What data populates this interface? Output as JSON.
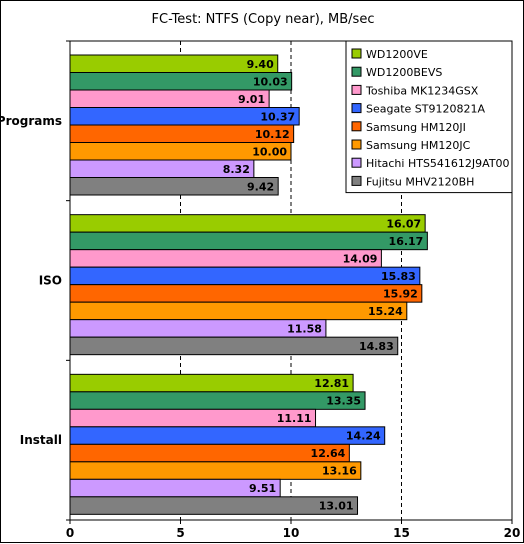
{
  "chart_data": {
    "type": "bar",
    "orientation": "horizontal",
    "title": "FC-Test: NTFS (Copy near), MB/sec",
    "xlabel": "",
    "ylabel": "",
    "xlim": [
      0,
      20
    ],
    "x_ticks": [
      "0",
      "5",
      "10",
      "15",
      "20"
    ],
    "grid": "vertical dashed",
    "legend_position": "top-right",
    "categories": [
      "Programs",
      "ISO",
      "Install"
    ],
    "series": [
      {
        "name": "WD1200VE",
        "color": "#99cc00",
        "values": [
          9.4,
          16.07,
          12.81
        ],
        "labels": [
          "9.40",
          "16.07",
          "12.81"
        ]
      },
      {
        "name": "WD1200BEVS",
        "color": "#339966",
        "values": [
          10.03,
          16.17,
          13.35
        ],
        "labels": [
          "10.03",
          "16.17",
          "13.35"
        ]
      },
      {
        "name": "Toshiba MK1234GSX",
        "color": "#ff99cc",
        "values": [
          9.01,
          14.09,
          11.11
        ],
        "labels": [
          "9.01",
          "14.09",
          "11.11"
        ]
      },
      {
        "name": "Seagate ST9120821A",
        "color": "#3366ff",
        "values": [
          10.37,
          15.83,
          14.24
        ],
        "labels": [
          "10.37",
          "15.83",
          "14.24"
        ]
      },
      {
        "name": "Samsung HM120JI",
        "color": "#ff6600",
        "values": [
          10.12,
          15.92,
          12.64
        ],
        "labels": [
          "10.12",
          "15.92",
          "12.64"
        ]
      },
      {
        "name": "Samsung HM120JC",
        "color": "#ff9900",
        "values": [
          10.0,
          15.24,
          13.16
        ],
        "labels": [
          "10.00",
          "15.24",
          "13.16"
        ]
      },
      {
        "name": "Hitachi HTS541612J9AT00",
        "color": "#cc99ff",
        "values": [
          8.32,
          11.58,
          9.51
        ],
        "labels": [
          "8.32",
          "11.58",
          "9.51"
        ]
      },
      {
        "name": "Fujitsu MHV2120BH",
        "color": "#808080",
        "values": [
          9.42,
          14.83,
          13.01
        ],
        "labels": [
          "9.42",
          "14.83",
          "13.01"
        ]
      }
    ]
  }
}
